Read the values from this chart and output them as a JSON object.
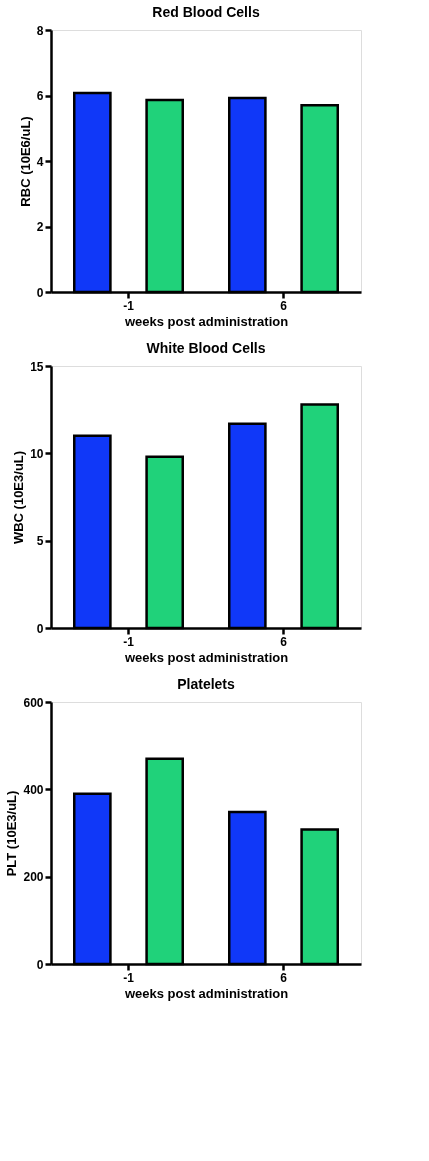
{
  "chart_data": [
    {
      "type": "bar",
      "title": "Red Blood Cells",
      "xlabel": "weeks post administration",
      "ylabel": "RBC (10E6/uL)",
      "categories": [
        "-1",
        "6"
      ],
      "series": [
        {
          "color": "#1038f8",
          "values": [
            6.08,
            5.92
          ]
        },
        {
          "color": "#20d27a",
          "values": [
            5.86,
            5.7
          ]
        }
      ],
      "ylim": [
        0,
        8
      ],
      "yticks": [
        0,
        2,
        4,
        6,
        8
      ]
    },
    {
      "type": "bar",
      "title": "White Blood Cells",
      "xlabel": "weeks post administration",
      "ylabel": "WBC (10E3/uL)",
      "categories": [
        "-1",
        "6"
      ],
      "series": [
        {
          "color": "#1038f8",
          "values": [
            11.0,
            11.7
          ]
        },
        {
          "color": "#20d27a",
          "values": [
            9.8,
            12.8
          ]
        }
      ],
      "ylim": [
        0,
        15
      ],
      "yticks": [
        0,
        5,
        10,
        15
      ]
    },
    {
      "type": "bar",
      "title": "Platelets",
      "xlabel": "weeks post administration",
      "ylabel": "PLT (10E3/uL)",
      "categories": [
        "-1",
        "6"
      ],
      "series": [
        {
          "color": "#1038f8",
          "values": [
            390,
            348
          ]
        },
        {
          "color": "#20d27a",
          "values": [
            470,
            308
          ]
        }
      ],
      "ylim": [
        0,
        600
      ],
      "yticks": [
        0,
        200,
        400,
        600
      ]
    }
  ]
}
